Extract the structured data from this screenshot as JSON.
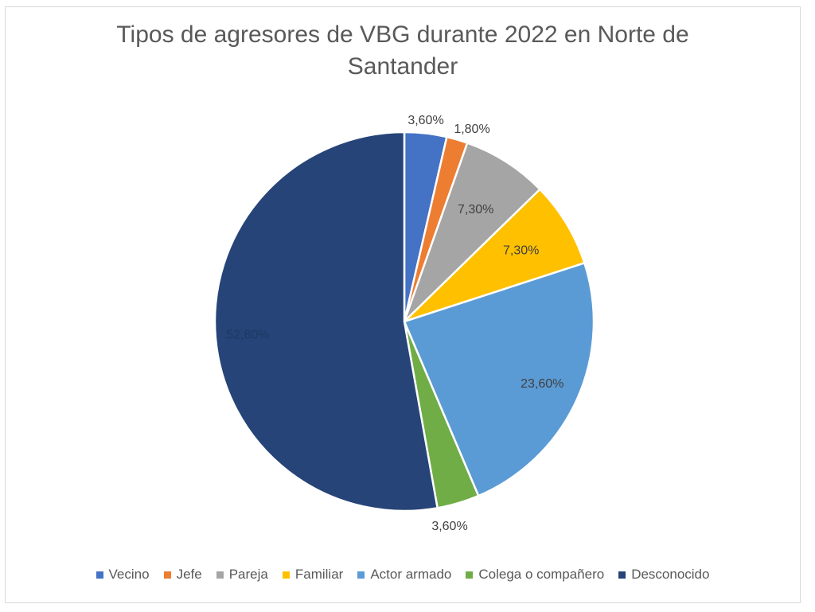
{
  "chart_data": {
    "type": "pie",
    "title_lines": [
      "Tipos de agresores de VBG durante 2022 en Norte de",
      "Santander"
    ],
    "legend_position": "bottom",
    "slices": [
      {
        "name": "Vecino",
        "value": 3.6,
        "label": "3,60%",
        "color": "#4472C4",
        "label_color": "#404040"
      },
      {
        "name": "Jefe",
        "value": 1.8,
        "label": "1,80%",
        "color": "#ED7D31",
        "label_color": "#404040"
      },
      {
        "name": "Pareja",
        "value": 7.3,
        "label": "7,30%",
        "color": "#A5A5A5",
        "label_color": "#404040"
      },
      {
        "name": "Familiar",
        "value": 7.3,
        "label": "7,30%",
        "color": "#FFC000",
        "label_color": "#404040"
      },
      {
        "name": "Actor armado",
        "value": 23.6,
        "label": "23,60%",
        "color": "#5B9BD5",
        "label_color": "#404040"
      },
      {
        "name": "Colega o compañero",
        "value": 3.6,
        "label": "3,60%",
        "color": "#70AD47",
        "label_color": "#404040"
      },
      {
        "name": "Desconocido",
        "value": 52.8,
        "label": "52,80%",
        "color": "#264478",
        "label_color": "#1f3864"
      }
    ]
  }
}
